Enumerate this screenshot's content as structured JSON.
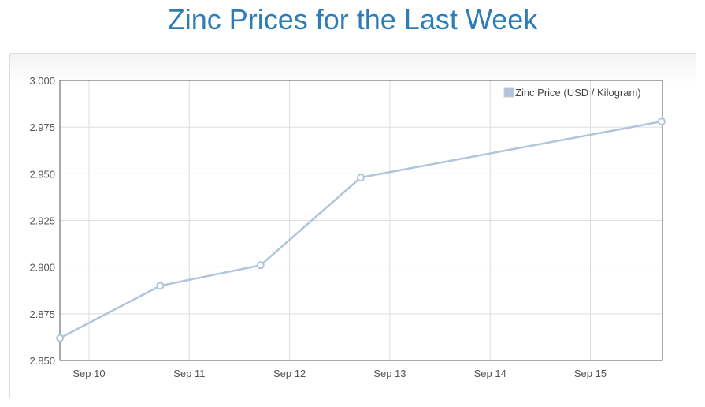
{
  "title": "Zinc Prices for the Last Week",
  "chart_data": {
    "type": "line",
    "title": "Zinc Prices for the Last Week",
    "xlabel": "",
    "ylabel": "",
    "x_tick_labels": [
      "Sep 10",
      "Sep 11",
      "Sep 12",
      "Sep 13",
      "Sep 14",
      "Sep 15"
    ],
    "x_tick_days": [
      10,
      11,
      12,
      13,
      14,
      15
    ],
    "xlim_days": [
      9.71,
      15.71
    ],
    "ylim": [
      2.85,
      3.0
    ],
    "y_ticks": [
      "2.850",
      "2.875",
      "2.900",
      "2.925",
      "2.950",
      "2.975",
      "3.000"
    ],
    "grid": true,
    "legend_position": "top-right",
    "series": [
      {
        "name": "Zinc Price (USD / Kilogram)",
        "color": "#b0c4de",
        "x_days": [
          9.71,
          10.71,
          11.71,
          12.71,
          15.71
        ],
        "values": [
          2.862,
          2.89,
          2.901,
          2.948,
          2.978
        ]
      }
    ]
  }
}
